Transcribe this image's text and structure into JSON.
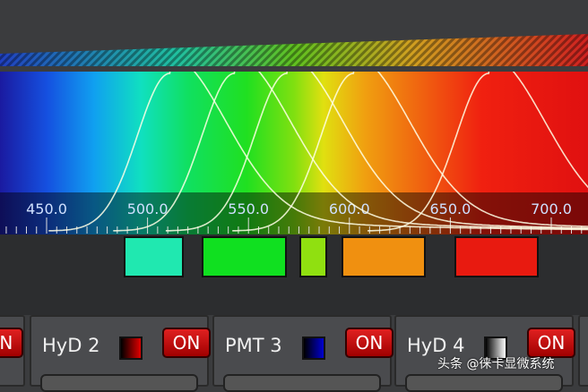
{
  "scale": {
    "min_nm": 450,
    "max_nm": 700,
    "labels": [
      "450.0",
      "500.0",
      "550.0",
      "600.0",
      "650.0",
      "700.0"
    ],
    "label_values": [
      450,
      500,
      550,
      600,
      650,
      700
    ]
  },
  "emission_peaks_nm": [
    511,
    543,
    569,
    602,
    669
  ],
  "detection_bands": [
    {
      "from": 488,
      "to": 518,
      "color": "#20e8b0"
    },
    {
      "from": 527,
      "to": 569,
      "color": "#10e020"
    },
    {
      "from": 575,
      "to": 589,
      "color": "#90e010"
    },
    {
      "from": 596,
      "to": 638,
      "color": "#f09010"
    },
    {
      "from": 652,
      "to": 694,
      "color": "#e81a10"
    }
  ],
  "detectors": [
    {
      "name": "",
      "on_label": "ON",
      "swatch": ""
    },
    {
      "name": "HyD 2",
      "on_label": "ON",
      "swatch": "#e00000"
    },
    {
      "name": "PMT 3",
      "on_label": "ON",
      "swatch": "#0000d0"
    },
    {
      "name": "HyD 4",
      "on_label": "ON",
      "swatch": "#e0e0e0"
    }
  ],
  "watermark": "头条 @徕卡显微系统"
}
